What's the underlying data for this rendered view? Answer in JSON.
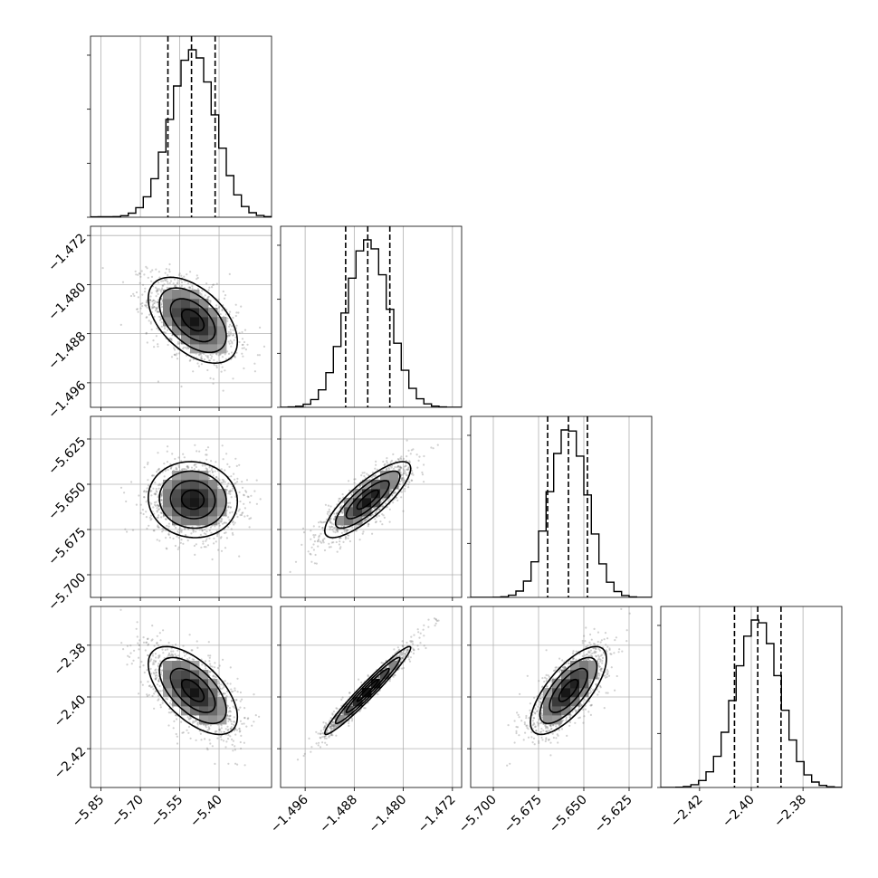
{
  "chart_data": {
    "type": "corner",
    "parameters": [
      {
        "range": [
          -5.89,
          -5.2
        ],
        "ticks": [
          -5.85,
          -5.7,
          -5.55,
          -5.4
        ],
        "tick_labels": [
          "−5.85",
          "−5.70",
          "−5.55",
          "−5.40"
        ],
        "mean": -5.5,
        "sd": 0.085,
        "quantiles": [
          -5.595,
          -5.505,
          -5.415
        ]
      },
      {
        "range": [
          -1.5,
          -1.4705
        ],
        "ticks": [
          -1.496,
          -1.488,
          -1.48,
          -1.472
        ],
        "tick_labels": [
          "−1.496",
          "−1.488",
          "−1.480",
          "−1.472"
        ],
        "mean": -1.4858,
        "sd": 0.0035,
        "quantiles": [
          -1.4894,
          -1.4858,
          -1.4822
        ]
      },
      {
        "range": [
          -5.7125,
          -5.6125
        ],
        "ticks": [
          -5.7,
          -5.675,
          -5.65,
          -5.625
        ],
        "tick_labels": [
          "−5.700",
          "−5.675",
          "−5.650",
          "−5.625"
        ],
        "mean": -5.6585,
        "sd": 0.0105,
        "quantiles": [
          -5.67,
          -5.6585,
          -5.648
        ]
      },
      {
        "range": [
          -2.435,
          -2.365
        ],
        "ticks": [
          -2.42,
          -2.4,
          -2.38
        ],
        "tick_labels": [
          "−2.42",
          "−2.40",
          "−2.38"
        ],
        "mean": -2.3975,
        "sd": 0.0085,
        "quantiles": [
          -2.4065,
          -2.3975,
          -2.3885
        ]
      }
    ],
    "correlations": [
      {
        "i": 1,
        "j": 0,
        "rho": -0.5
      },
      {
        "i": 2,
        "j": 0,
        "rho": -0.05
      },
      {
        "i": 2,
        "j": 1,
        "rho": 0.82
      },
      {
        "i": 3,
        "j": 0,
        "rho": -0.6
      },
      {
        "i": 3,
        "j": 1,
        "rho": 0.97
      },
      {
        "i": 3,
        "j": 2,
        "rho": 0.72
      }
    ],
    "histogram_bins": 24,
    "contour_levels_sigma": [
      0.5,
      1.0,
      1.5,
      2.0
    ],
    "grid": true,
    "xlabels": [
      "",
      "",
      "",
      ""
    ],
    "ylabels": [
      "",
      "",
      "",
      ""
    ]
  }
}
